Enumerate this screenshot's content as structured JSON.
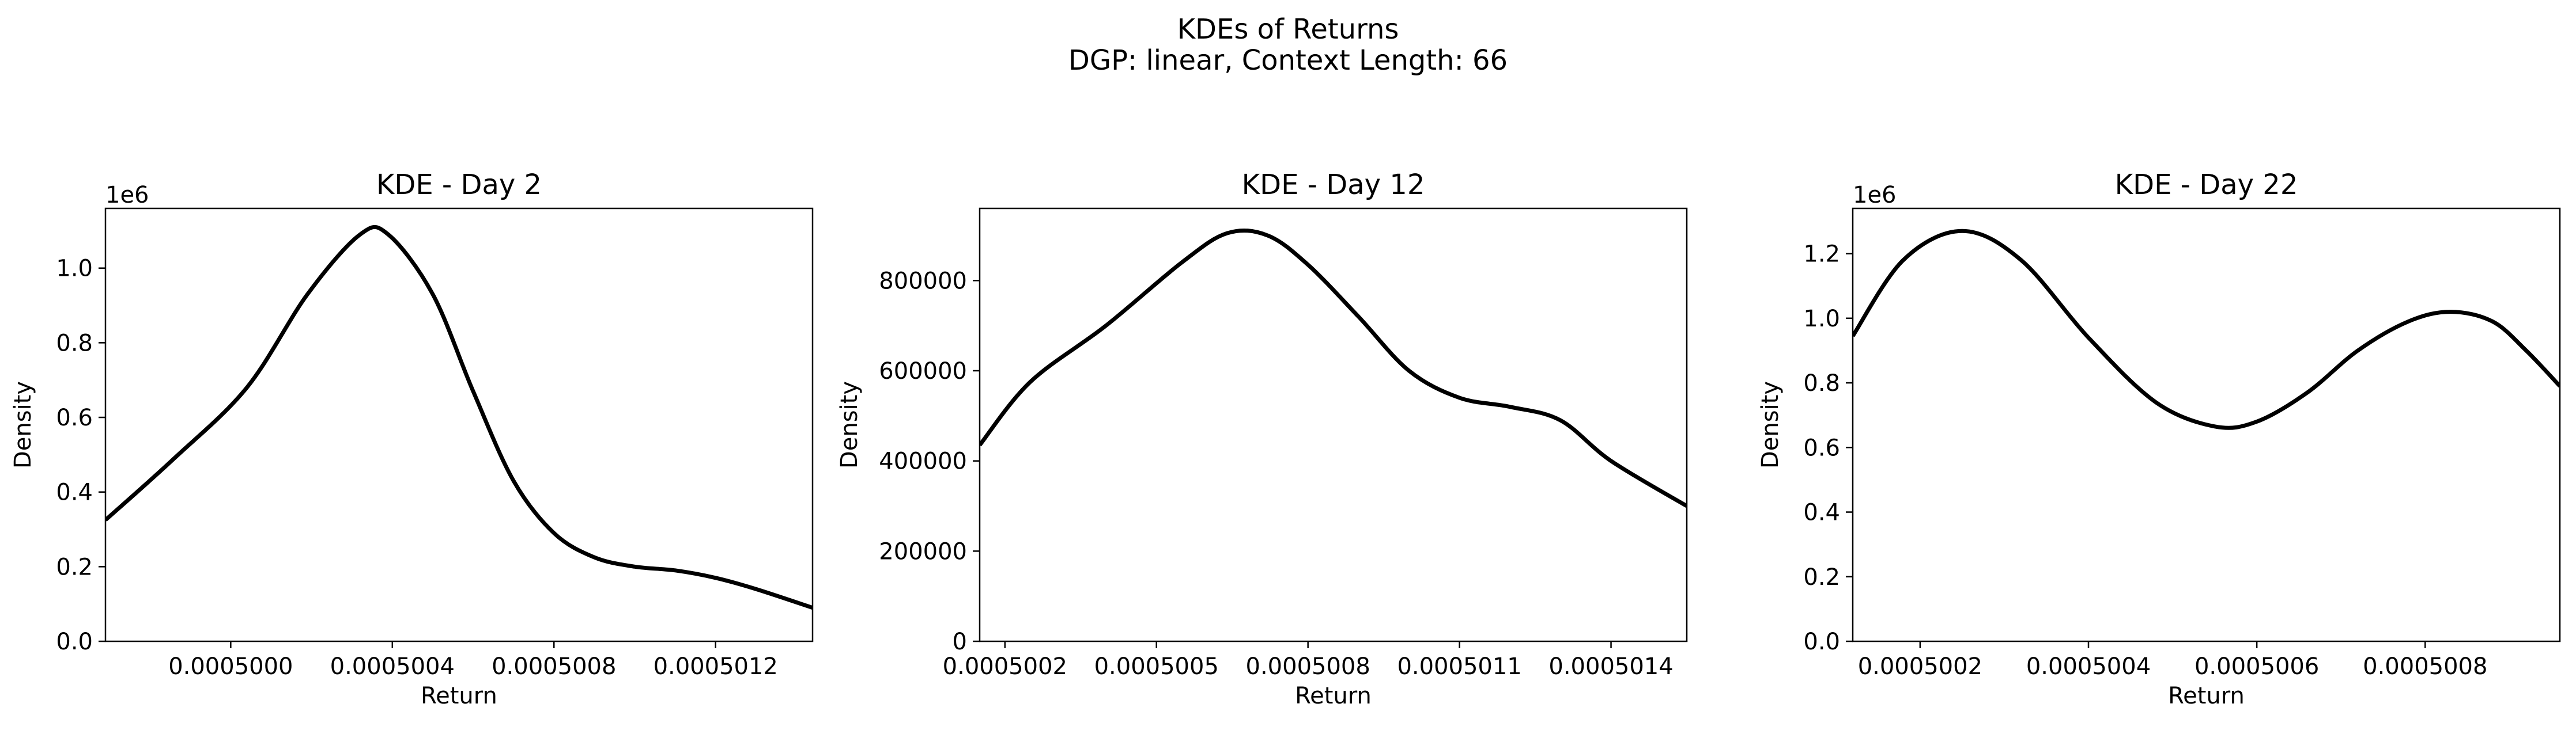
{
  "figure": {
    "title": "KDEs of Returns",
    "subtitle": "DGP: linear, Context Length: 66"
  },
  "chart_data": [
    {
      "type": "line",
      "title": "KDE - Day 2",
      "xlabel": "Return",
      "ylabel": "Density",
      "offset_label": "1e6",
      "xlim": [
        0.00049969,
        0.00050144
      ],
      "ylim": [
        0,
        1.16
      ],
      "xticks": [
        0.0005,
        0.0005004,
        0.0005008,
        0.0005012
      ],
      "xtick_labels": [
        "0.0005000",
        "0.0005004",
        "0.0005008",
        "0.0005012"
      ],
      "yticks": [
        0,
        0.2,
        0.4,
        0.6,
        0.8,
        1.0
      ],
      "ytick_labels": [
        "0.0",
        "0.2",
        "0.4",
        "0.6",
        "0.8",
        "1.0"
      ],
      "series": [
        {
          "x": [
            0.00049969,
            0.00049986,
            0.00050004,
            0.00050019,
            0.00050032,
            0.00050039,
            0.0005005,
            0.0005006,
            0.0005007,
            0.0005008,
            0.0005009,
            0.000501,
            0.0005011,
            0.0005012,
            0.0005013,
            0.00050144
          ],
          "y": [
            0.325,
            0.49,
            0.68,
            0.93,
            1.09,
            1.09,
            0.93,
            0.67,
            0.43,
            0.29,
            0.225,
            0.2,
            0.19,
            0.17,
            0.14,
            0.09
          ]
        }
      ]
    },
    {
      "type": "line",
      "title": "KDE - Day 12",
      "xlabel": "Return",
      "ylabel": "Density",
      "offset_label": "",
      "xlim": [
        0.00050015,
        0.00050155
      ],
      "ylim": [
        0,
        960000
      ],
      "xticks": [
        0.0005002,
        0.0005005,
        0.0005008,
        0.0005011,
        0.0005014
      ],
      "xtick_labels": [
        "0.0005002",
        "0.0005005",
        "0.0005008",
        "0.0005011",
        "0.0005014"
      ],
      "yticks": [
        0,
        200000,
        400000,
        600000,
        800000
      ],
      "ytick_labels": [
        "0",
        "200000",
        "400000",
        "600000",
        "800000"
      ],
      "series": [
        {
          "x": [
            0.00050015,
            0.00050025,
            0.0005004,
            0.00050055,
            0.00050064,
            0.00050072,
            0.0005008,
            0.0005009,
            0.000501,
            0.0005011,
            0.0005012,
            0.0005013,
            0.0005014,
            0.00050155
          ],
          "y": [
            435000,
            575000,
            700000,
            840000,
            905000,
            900000,
            835000,
            720000,
            600000,
            540000,
            520000,
            490000,
            400000,
            300000
          ]
        }
      ]
    },
    {
      "type": "line",
      "title": "KDE - Day 22",
      "xlabel": "Return",
      "ylabel": "Density",
      "offset_label": "1e6",
      "xlim": [
        0.00050012,
        0.00050096
      ],
      "ylim": [
        0,
        1.34
      ],
      "xticks": [
        0.0005002,
        0.0005004,
        0.0005006,
        0.0005008
      ],
      "xtick_labels": [
        "0.0005002",
        "0.0005004",
        "0.0005006",
        "0.0005008"
      ],
      "yticks": [
        0,
        0.2,
        0.4,
        0.6,
        0.8,
        1.0,
        1.2
      ],
      "ytick_labels": [
        "0.0",
        "0.2",
        "0.4",
        "0.6",
        "0.8",
        "1.0",
        "1.2"
      ],
      "series": [
        {
          "x": [
            0.00050012,
            0.00050018,
            0.00050025,
            0.00050032,
            0.0005004,
            0.00050048,
            0.00050055,
            0.0005006,
            0.00050066,
            0.00050072,
            0.00050078,
            0.00050083,
            0.00050088,
            0.00050092,
            0.00050096
          ],
          "y": [
            0.945,
            1.18,
            1.27,
            1.18,
            0.94,
            0.74,
            0.665,
            0.68,
            0.77,
            0.9,
            0.99,
            1.02,
            0.99,
            0.9,
            0.79
          ]
        }
      ]
    }
  ]
}
